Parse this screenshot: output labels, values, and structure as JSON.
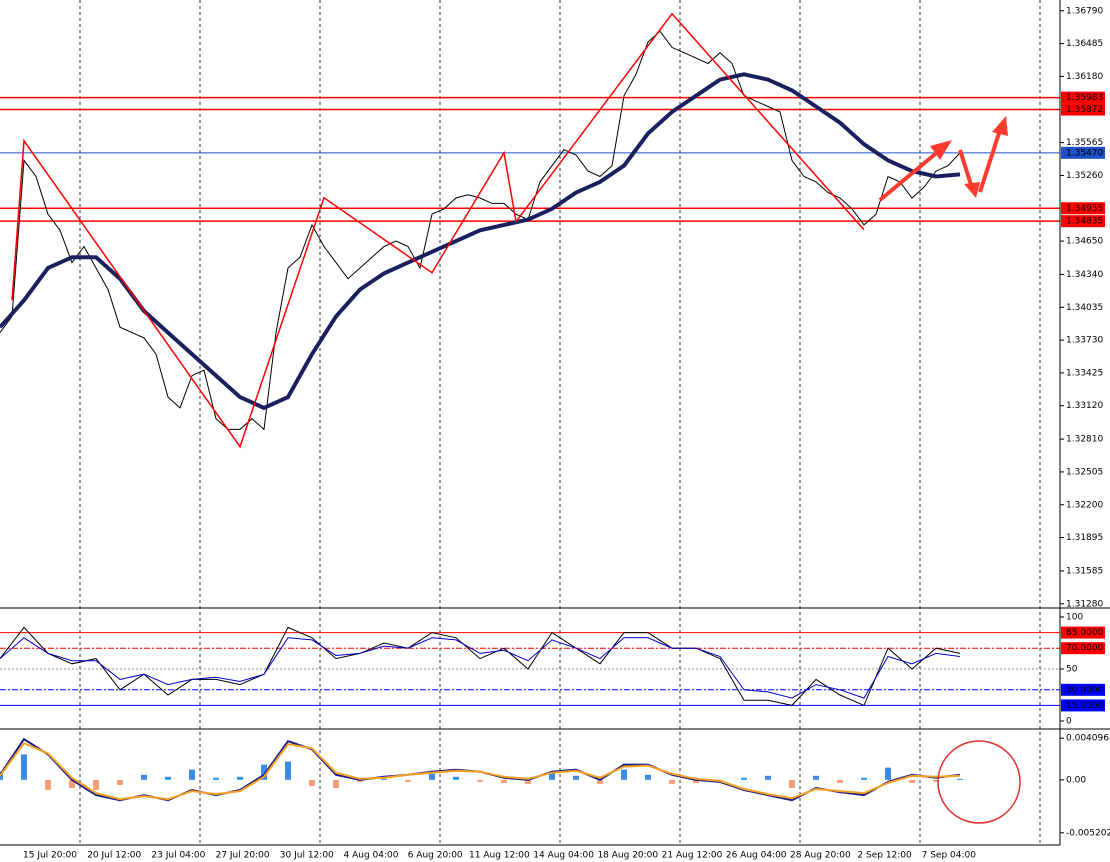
{
  "chart_data": [
    {
      "type": "price",
      "ylim": [
        1.3125,
        1.3689
      ],
      "yticks": [
        {
          "value": 1.3679,
          "label": "1.36790"
        },
        {
          "value": 1.36485,
          "label": "1.36485"
        },
        {
          "value": 1.3618,
          "label": "1.36180"
        },
        {
          "value": 1.35565,
          "label": "1.35565"
        },
        {
          "value": 1.3526,
          "label": "1.35260"
        },
        {
          "value": 1.3465,
          "label": "1.34650"
        },
        {
          "value": 1.3434,
          "label": "1.34340"
        },
        {
          "value": 1.34035,
          "label": "1.34035"
        },
        {
          "value": 1.3373,
          "label": "1.33730"
        },
        {
          "value": 1.33425,
          "label": "1.33425"
        },
        {
          "value": 1.3312,
          "label": "1.33120"
        },
        {
          "value": 1.3281,
          "label": "1.32810"
        },
        {
          "value": 1.32505,
          "label": "1.32505"
        },
        {
          "value": 1.322,
          "label": "1.32200"
        },
        {
          "value": 1.31895,
          "label": "1.31895"
        },
        {
          "value": 1.31585,
          "label": "1.31585"
        },
        {
          "value": 1.3128,
          "label": "1.31280"
        }
      ],
      "levels": [
        {
          "value": 1.35983,
          "color": "#ff0000"
        },
        {
          "value": 1.35872,
          "color": "#ff0000"
        },
        {
          "value": 1.3547,
          "label": "1.35470",
          "color": "#1e50c8"
        },
        {
          "value": 1.34955,
          "color": "#ff0000"
        },
        {
          "value": 1.34835,
          "color": "#ff0000"
        }
      ],
      "values": [
        1.338,
        1.3395,
        1.354,
        1.3525,
        1.349,
        1.3475,
        1.3445,
        1.346,
        1.344,
        1.342,
        1.3385,
        1.338,
        1.3375,
        1.336,
        1.332,
        1.331,
        1.334,
        1.3345,
        1.33,
        1.329,
        1.329,
        1.33,
        1.329,
        1.338,
        1.344,
        1.345,
        1.348,
        1.346,
        1.3445,
        1.343,
        1.344,
        1.345,
        1.346,
        1.3465,
        1.346,
        1.344,
        1.349,
        1.3495,
        1.3505,
        1.3508,
        1.3505,
        1.35,
        1.35,
        1.349,
        1.3485,
        1.352,
        1.3535,
        1.355,
        1.3545,
        1.353,
        1.3525,
        1.3535,
        1.36,
        1.362,
        1.365,
        1.366,
        1.3645,
        1.364,
        1.3635,
        1.363,
        1.364,
        1.363,
        1.36,
        1.3595,
        1.359,
        1.3585,
        1.354,
        1.3525,
        1.352,
        1.351,
        1.3505,
        1.3495,
        1.348,
        1.349,
        1.3525,
        1.352,
        1.3505,
        1.3515,
        1.353,
        1.3535,
        1.3547
      ],
      "color": "#000000",
      "ma": [
        1.3385,
        1.341,
        1.344,
        1.345,
        1.345,
        1.343,
        1.34,
        1.338,
        1.336,
        1.334,
        1.332,
        1.331,
        1.332,
        1.336,
        1.3395,
        1.342,
        1.3435,
        1.3445,
        1.3455,
        1.3465,
        1.3475,
        1.348,
        1.3485,
        1.3495,
        1.351,
        1.352,
        1.3535,
        1.3565,
        1.3585,
        1.36,
        1.3615,
        1.362,
        1.3615,
        1.3605,
        1.359,
        1.3575,
        1.3555,
        1.354,
        1.353,
        1.3525,
        1.3527
      ],
      "ma_color": "#1a1f5e",
      "zigzag": {
        "x": [
          1,
          2,
          20,
          27,
          36,
          42,
          43,
          56,
          72
        ],
        "values": [
          1.341,
          1.35582,
          1.32739,
          1.35052,
          1.34356,
          1.35471,
          1.3483,
          1.36762,
          1.34755
        ],
        "color": "#ff0000"
      },
      "time_labels": [
        "15 Jul 20:00",
        "20 Jul 12:00",
        "23 Jul 04:00",
        "27 Jul 20:00",
        "30 Jul 12:00",
        "4 Aug 04:00",
        "6 Aug 20:00",
        "11 Aug 12:00",
        "14 Aug 04:00",
        "18 Aug 20:00",
        "21 Aug 12:00",
        "26 Aug 04:00",
        "28 Aug 20:00",
        "2 Sep 12:00",
        "7 Sep 04:00"
      ]
    },
    {
      "type": "oscillator",
      "ylim": [
        -6.7,
        106.7
      ],
      "yticks": [
        100,
        50,
        0
      ],
      "levels": [
        {
          "value": 85,
          "label": "85.0000",
          "color": "#ff0000"
        },
        {
          "value": 70,
          "label": "70.0000",
          "color": "#ff0000"
        },
        {
          "value": 30,
          "label": "30.0000",
          "color": "#0000ff"
        },
        {
          "value": 15,
          "label": "15.0000",
          "color": "#0000ff"
        }
      ],
      "series": [
        {
          "color": "#000000",
          "values": [
            60,
            90,
            65,
            55,
            60,
            30,
            45,
            25,
            40,
            40,
            35,
            45,
            90,
            80,
            60,
            65,
            75,
            70,
            85,
            80,
            60,
            70,
            50,
            85,
            70,
            55,
            85,
            85,
            70,
            70,
            60,
            20,
            20,
            15,
            40,
            25,
            15,
            70,
            50,
            70,
            65
          ]
        },
        {
          "color": "#0000cc",
          "values": [
            60,
            80,
            65,
            58,
            58,
            40,
            45,
            35,
            40,
            42,
            38,
            45,
            80,
            78,
            63,
            65,
            72,
            70,
            80,
            78,
            65,
            68,
            58,
            78,
            70,
            60,
            80,
            80,
            70,
            70,
            62,
            30,
            28,
            22,
            35,
            30,
            22,
            62,
            55,
            65,
            62
          ]
        }
      ]
    },
    {
      "type": "macd",
      "ylim": [
        -0.0064,
        0.0048
      ],
      "yticks": [
        0.0040965,
        {
          "value": 0,
          "label": "0.00"
        },
        -0.005202
      ],
      "histogram": [
        0.0008,
        0.0025,
        -0.001,
        -0.0008,
        -0.001,
        -0.0005,
        0.0005,
        0.0003,
        0.001,
        0.0002,
        0.0003,
        0.0015,
        0.0018,
        -0.0006,
        -0.0008,
        -0.0002,
        0.0001,
        -0.0002,
        0.0006,
        0.0003,
        -0.0002,
        -0.0003,
        -0.0004,
        0.0008,
        0.0004,
        -0.0004,
        0.001,
        0.0005,
        -0.0004,
        -0.0003,
        -0.0002,
        0.0002,
        0.0004,
        -0.0008,
        0.0004,
        -0.0003,
        0.0002,
        0.0012,
        -0.0003,
        -0.0002,
        0.0001
      ],
      "positive_color": "#3c8ce6",
      "negative_color": "#f5a07a",
      "series": [
        {
          "color": "#1a1f8e",
          "values": [
            0.0005,
            0.004,
            0.0025,
            0,
            -0.0015,
            -0.002,
            -0.0015,
            -0.002,
            -0.001,
            -0.0015,
            -0.001,
            0.0005,
            0.0038,
            0.003,
            0.0005,
            0,
            0.0003,
            0.0005,
            0.0008,
            0.001,
            0.0008,
            0.0002,
            0,
            0.0008,
            0.001,
            0,
            0.0015,
            0.0015,
            0.0005,
            0,
            -0.0002,
            -0.001,
            -0.0015,
            -0.002,
            -0.0008,
            -0.0012,
            -0.0015,
            -0.0002,
            0.0005,
            0.0002,
            0.0005
          ]
        },
        {
          "color": "#f5a020",
          "values": [
            0.0004,
            0.0036,
            0.0026,
            0.0002,
            -0.0013,
            -0.0019,
            -0.0016,
            -0.0019,
            -0.0011,
            -0.0014,
            -0.0011,
            0.0003,
            0.0035,
            0.0031,
            0.0007,
            0.0001,
            0.0002,
            0.0005,
            0.0007,
            0.0009,
            0.0008,
            0.0003,
            0.0001,
            0.0007,
            0.0009,
            0.0002,
            0.0013,
            0.0014,
            0.0006,
            0.0001,
            -0.0001,
            -0.0009,
            -0.0014,
            -0.0018,
            -0.0009,
            -0.0011,
            -0.0013,
            -0.0003,
            0.0004,
            0.0003,
            0.0004
          ]
        }
      ]
    }
  ]
}
